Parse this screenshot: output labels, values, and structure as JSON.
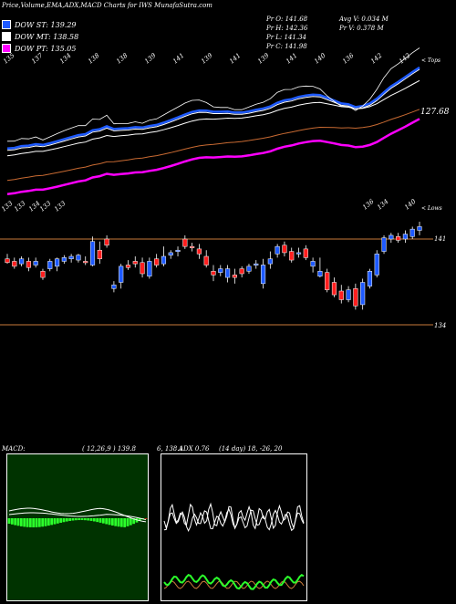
{
  "header": {
    "title": "Price,Volume,EMA,ADX,MACD Charts for IWS MunafaSutra.com"
  },
  "legend": [
    {
      "label": "DOW ST: 139.29",
      "color": "#1e5aff"
    },
    {
      "label": "DOW MT: 138.58",
      "color": "#ffffff"
    },
    {
      "label": "DOW PT: 135.05",
      "color": "#ff00ff"
    }
  ],
  "info": {
    "pr_o": "Pr   O: 141.68",
    "pr_h": "Pr   H: 142.36",
    "pr_l": "Pr   L: 141.34",
    "pr_c": "Pr   C: 141.98",
    "avg_v": "Avg V: 0.034   M",
    "pr_v": "Pr   V: 0.378   M"
  },
  "top_labels": [
    "135",
    "137",
    "134",
    "138",
    "138",
    "139",
    "141",
    "139",
    "141",
    "139",
    "141",
    "140",
    "136",
    "142",
    "142"
  ],
  "top_tag": "< Tops",
  "bottom_labels": [
    "133",
    "133",
    "134",
    "133",
    "133",
    "136",
    "134",
    "140"
  ],
  "bottom_tag": "< Lows",
  "price_tag": "127.68",
  "right_axis": [
    "141",
    "134"
  ],
  "macd_label": "MACD:",
  "macd_params": "( 12,26,9 ) 139.8",
  "macd_values": "6,  138.1",
  "adx_label": "ADX  0.76",
  "adx_params": "(14  day) 18,  -26,  20",
  "colors": {
    "up": "#1e5aff",
    "down": "#ff1e1e",
    "ema_fast": "#1e5aff",
    "ema_mid": "#ffffff",
    "ema_slow": "#ff00ff",
    "ema_long": "#c86a32",
    "macd_bg": "#003300",
    "macd_hist": "#2bff2b",
    "level": "#c87a3a"
  },
  "chart_data": {
    "type": "candlestick",
    "candles": [
      {
        "o": 139.4,
        "h": 139.8,
        "l": 139.0,
        "c": 139.1
      },
      {
        "o": 139.2,
        "h": 139.5,
        "l": 138.6,
        "c": 138.8
      },
      {
        "o": 139.0,
        "h": 139.6,
        "l": 138.8,
        "c": 139.4
      },
      {
        "o": 139.2,
        "h": 139.5,
        "l": 138.4,
        "c": 138.7
      },
      {
        "o": 138.9,
        "h": 139.5,
        "l": 138.7,
        "c": 139.2
      },
      {
        "o": 138.4,
        "h": 138.6,
        "l": 137.7,
        "c": 137.9
      },
      {
        "o": 138.6,
        "h": 139.4,
        "l": 138.4,
        "c": 139.2
      },
      {
        "o": 138.8,
        "h": 139.5,
        "l": 138.4,
        "c": 139.4
      },
      {
        "o": 139.2,
        "h": 139.7,
        "l": 139.0,
        "c": 139.5
      },
      {
        "o": 139.4,
        "h": 139.8,
        "l": 139.1,
        "c": 139.6
      },
      {
        "o": 139.3,
        "h": 139.8,
        "l": 139.1,
        "c": 139.7
      },
      {
        "o": 139.2,
        "h": 139.6,
        "l": 138.9,
        "c": 139.1
      },
      {
        "o": 138.9,
        "h": 141.2,
        "l": 138.8,
        "c": 140.8
      },
      {
        "o": 140.1,
        "h": 140.8,
        "l": 139.0,
        "c": 139.4
      },
      {
        "o": 141.0,
        "h": 141.3,
        "l": 140.3,
        "c": 140.5
      },
      {
        "o": 137.0,
        "h": 137.6,
        "l": 136.7,
        "c": 137.3
      },
      {
        "o": 137.5,
        "h": 139.0,
        "l": 137.0,
        "c": 138.8
      },
      {
        "o": 138.9,
        "h": 139.3,
        "l": 138.5,
        "c": 138.7
      },
      {
        "o": 139.2,
        "h": 139.6,
        "l": 138.7,
        "c": 139.0
      },
      {
        "o": 139.1,
        "h": 139.5,
        "l": 137.9,
        "c": 138.2
      },
      {
        "o": 138.0,
        "h": 139.5,
        "l": 137.8,
        "c": 139.2
      },
      {
        "o": 139.4,
        "h": 139.8,
        "l": 138.7,
        "c": 138.9
      },
      {
        "o": 139.0,
        "h": 140.4,
        "l": 138.8,
        "c": 139.6
      },
      {
        "o": 139.7,
        "h": 140.1,
        "l": 139.4,
        "c": 139.9
      },
      {
        "o": 140.0,
        "h": 140.4,
        "l": 139.6,
        "c": 140.1
      },
      {
        "o": 141.0,
        "h": 141.3,
        "l": 140.2,
        "c": 140.4
      },
      {
        "o": 140.4,
        "h": 140.7,
        "l": 140.0,
        "c": 140.3
      },
      {
        "o": 140.2,
        "h": 140.6,
        "l": 139.4,
        "c": 139.8
      },
      {
        "o": 139.6,
        "h": 140.1,
        "l": 138.7,
        "c": 138.9
      },
      {
        "o": 138.4,
        "h": 138.9,
        "l": 137.6,
        "c": 138.1
      },
      {
        "o": 138.3,
        "h": 138.9,
        "l": 138.0,
        "c": 138.6
      },
      {
        "o": 137.9,
        "h": 138.9,
        "l": 137.5,
        "c": 138.6
      },
      {
        "o": 138.1,
        "h": 138.6,
        "l": 137.4,
        "c": 137.9
      },
      {
        "o": 138.6,
        "h": 138.8,
        "l": 137.9,
        "c": 138.2
      },
      {
        "o": 138.4,
        "h": 139.0,
        "l": 138.2,
        "c": 138.8
      },
      {
        "o": 138.9,
        "h": 139.3,
        "l": 138.6,
        "c": 139.0
      },
      {
        "o": 137.4,
        "h": 139.4,
        "l": 137.0,
        "c": 138.9
      },
      {
        "o": 139.0,
        "h": 140.0,
        "l": 138.6,
        "c": 139.4
      },
      {
        "o": 139.8,
        "h": 140.6,
        "l": 139.5,
        "c": 140.4
      },
      {
        "o": 140.5,
        "h": 140.8,
        "l": 139.6,
        "c": 139.9
      },
      {
        "o": 140.0,
        "h": 140.3,
        "l": 139.1,
        "c": 139.3
      },
      {
        "o": 139.8,
        "h": 140.3,
        "l": 139.5,
        "c": 139.9
      },
      {
        "o": 140.2,
        "h": 140.5,
        "l": 139.3,
        "c": 139.5
      },
      {
        "o": 138.8,
        "h": 139.5,
        "l": 138.3,
        "c": 139.2
      },
      {
        "o": 138.0,
        "h": 139.5,
        "l": 137.9,
        "c": 138.4
      },
      {
        "o": 138.3,
        "h": 138.6,
        "l": 136.7,
        "c": 136.9
      },
      {
        "o": 137.5,
        "h": 137.9,
        "l": 136.3,
        "c": 136.5
      },
      {
        "o": 136.8,
        "h": 137.3,
        "l": 135.8,
        "c": 136.1
      },
      {
        "o": 136.1,
        "h": 137.2,
        "l": 135.9,
        "c": 136.9
      },
      {
        "o": 137.0,
        "h": 137.4,
        "l": 135.3,
        "c": 135.6
      },
      {
        "o": 135.7,
        "h": 137.8,
        "l": 135.3,
        "c": 137.5
      },
      {
        "o": 137.2,
        "h": 138.6,
        "l": 137.0,
        "c": 138.4
      },
      {
        "o": 138.1,
        "h": 140.1,
        "l": 137.9,
        "c": 139.8
      },
      {
        "o": 140.0,
        "h": 141.3,
        "l": 139.8,
        "c": 141.1
      },
      {
        "o": 141.0,
        "h": 141.5,
        "l": 140.7,
        "c": 141.3
      },
      {
        "o": 141.2,
        "h": 141.5,
        "l": 140.7,
        "c": 140.9
      },
      {
        "o": 141.0,
        "h": 141.7,
        "l": 140.7,
        "c": 141.4
      },
      {
        "o": 141.2,
        "h": 142.0,
        "l": 141.0,
        "c": 141.8
      },
      {
        "o": 141.7,
        "h": 142.4,
        "l": 141.3,
        "c": 142.0
      }
    ],
    "ylim": [
      133,
      146
    ]
  }
}
